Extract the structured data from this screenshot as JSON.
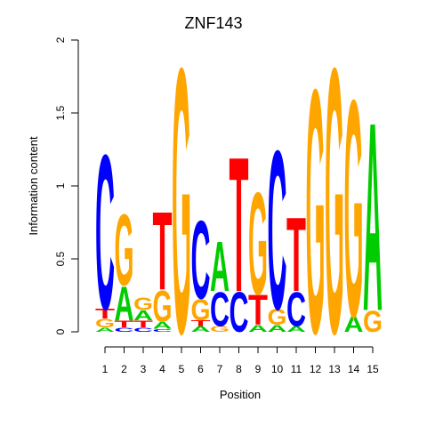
{
  "chart_data": {
    "type": "sequence-logo",
    "title": "ZNF143",
    "xlabel": "Position",
    "ylabel": "Information content",
    "ylim": [
      0,
      2
    ],
    "yticks": [
      "0",
      "0.5",
      "1",
      "1.5",
      "2"
    ],
    "positions": [
      "1",
      "2",
      "3",
      "4",
      "5",
      "6",
      "7",
      "8",
      "9",
      "10",
      "11",
      "12",
      "13",
      "14",
      "15"
    ],
    "colors": {
      "A": "#00cc00",
      "C": "#0000ff",
      "G": "#ffa500",
      "T": "#ff0000"
    },
    "columns": [
      [
        {
          "b": "A",
          "h": 0.03
        },
        {
          "b": "G",
          "h": 0.06
        },
        {
          "b": "T",
          "h": 0.07
        },
        {
          "b": "C",
          "h": 1.09
        }
      ],
      [
        {
          "b": "C",
          "h": 0.03
        },
        {
          "b": "T",
          "h": 0.05
        },
        {
          "b": "A",
          "h": 0.24
        },
        {
          "b": "G",
          "h": 0.5
        }
      ],
      [
        {
          "b": "C",
          "h": 0.03
        },
        {
          "b": "T",
          "h": 0.05
        },
        {
          "b": "A",
          "h": 0.07
        },
        {
          "b": "G",
          "h": 0.09
        }
      ],
      [
        {
          "b": "C",
          "h": 0.02
        },
        {
          "b": "A",
          "h": 0.05
        },
        {
          "b": "G",
          "h": 0.22
        },
        {
          "b": "T",
          "h": 0.55
        }
      ],
      [
        {
          "b": "G",
          "h": 1.87
        }
      ],
      [
        {
          "b": "A",
          "h": 0.04
        },
        {
          "b": "T",
          "h": 0.04
        },
        {
          "b": "G",
          "h": 0.15
        },
        {
          "b": "C",
          "h": 0.55
        }
      ],
      [
        {
          "b": "G",
          "h": 0.04
        },
        {
          "b": "C",
          "h": 0.24
        },
        {
          "b": "A",
          "h": 0.35
        }
      ],
      [
        {
          "b": "C",
          "h": 0.28
        },
        {
          "b": "T",
          "h": 0.95
        }
      ],
      [
        {
          "b": "A",
          "h": 0.05
        },
        {
          "b": "T",
          "h": 0.21
        },
        {
          "b": "G",
          "h": 0.72
        }
      ],
      [
        {
          "b": "A",
          "h": 0.05
        },
        {
          "b": "G",
          "h": 0.11
        },
        {
          "b": "C",
          "h": 1.12
        }
      ],
      [
        {
          "b": "A",
          "h": 0.04
        },
        {
          "b": "C",
          "h": 0.24
        },
        {
          "b": "T",
          "h": 0.52
        }
      ],
      [
        {
          "b": "G",
          "h": 1.72
        }
      ],
      [
        {
          "b": "G",
          "h": 1.87
        }
      ],
      [
        {
          "b": "A",
          "h": 0.11
        },
        {
          "b": "G",
          "h": 1.53
        }
      ],
      [
        {
          "b": "G",
          "h": 0.15
        },
        {
          "b": "A",
          "h": 1.33
        }
      ]
    ]
  }
}
